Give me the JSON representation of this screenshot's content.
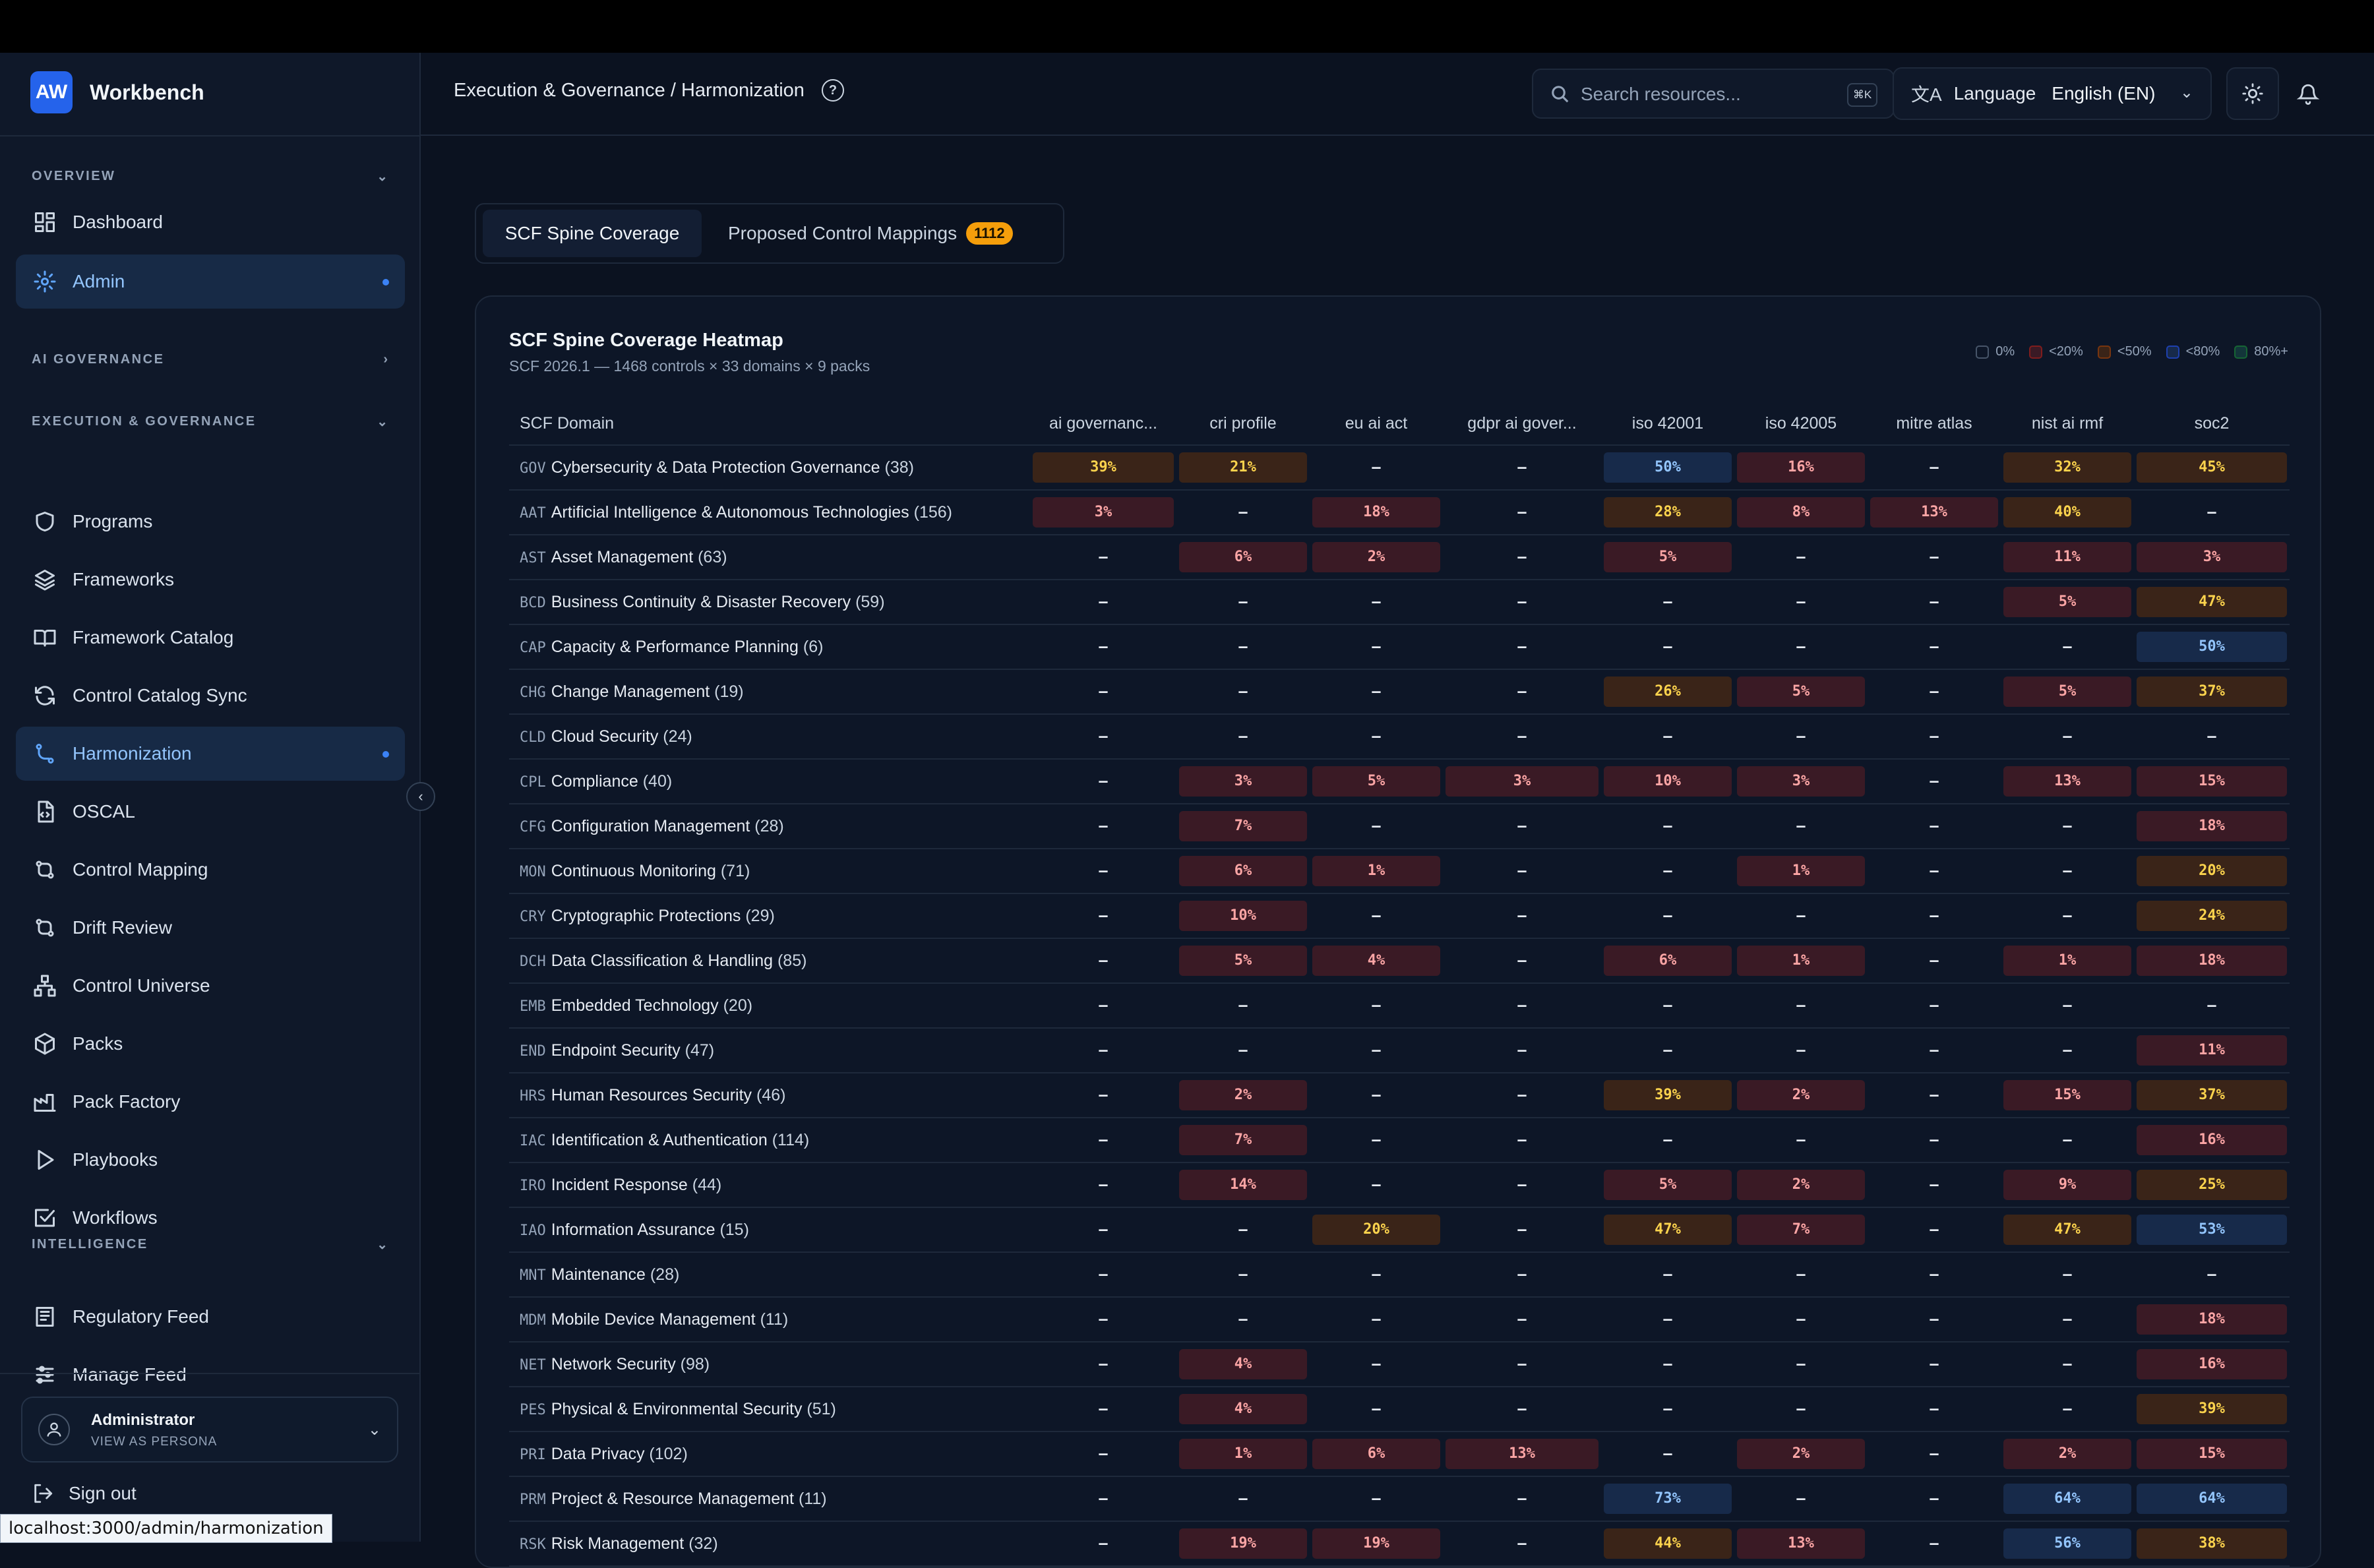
{
  "sidebar": {
    "brand_initials": "AW",
    "brand_name": "Workbench",
    "sections": {
      "overview": "OVERVIEW",
      "ai_governance": "AI GOVERNANCE",
      "execution": "EXECUTION & GOVERNANCE",
      "intelligence": "INTELLIGENCE"
    },
    "items": {
      "dashboard": "Dashboard",
      "admin": "Admin",
      "programs": "Programs",
      "frameworks": "Frameworks",
      "framework_catalog": "Framework Catalog",
      "control_catalog_sync": "Control Catalog Sync",
      "harmonization": "Harmonization",
      "oscal": "OSCAL",
      "control_mapping": "Control Mapping",
      "drift_review": "Drift Review",
      "control_universe": "Control Universe",
      "packs": "Packs",
      "pack_factory": "Pack Factory",
      "playbooks": "Playbooks",
      "workflows": "Workflows",
      "regulatory_feed": "Regulatory Feed",
      "manage_feed": "Manage Feed"
    },
    "persona": {
      "name": "Administrator",
      "subtitle": "VIEW AS PERSONA"
    },
    "sign_out": "Sign out"
  },
  "status_url": "localhost:3000/admin/harmonization",
  "header": {
    "breadcrumb": "Execution & Governance / Harmonization",
    "search_placeholder": "Search resources...",
    "search_shortcut": "⌘K",
    "language_label": "Language",
    "language_value": "English (EN)"
  },
  "tabs": {
    "coverage": "SCF Spine Coverage",
    "mappings": "Proposed Control Mappings",
    "mappings_count": "1112"
  },
  "card": {
    "title": "SCF Spine Coverage Heatmap",
    "subtitle": "SCF 2026.1 — 1468 controls × 33 domains × 9 packs",
    "legend": [
      "0%",
      "<20%",
      "<50%",
      "<80%",
      "80%+"
    ]
  },
  "colors": {
    "accent": "#3b82f6",
    "badge": "#f59e0b",
    "low": "#fca5a5",
    "mid": "#fcd34d",
    "high": "#93c5fd"
  },
  "table": {
    "domain_header": "SCF Domain",
    "columns": [
      "ai governanc...",
      "cri profile",
      "eu ai act",
      "gdpr ai gover...",
      "iso 42001",
      "iso 42005",
      "mitre atlas",
      "nist ai rmf",
      "soc2"
    ],
    "rows": [
      {
        "code": "GOV",
        "name": "Cybersecurity & Data Protection Governance",
        "count": "(38)",
        "cells": [
          "39%",
          "21%",
          "–",
          "–",
          "50%",
          "16%",
          "–",
          "32%",
          "45%"
        ]
      },
      {
        "code": "AAT",
        "name": "Artificial Intelligence & Autonomous Technologies",
        "count": "(156)",
        "cells": [
          "3%",
          "–",
          "18%",
          "–",
          "28%",
          "8%",
          "13%",
          "40%",
          "–"
        ]
      },
      {
        "code": "AST",
        "name": "Asset Management",
        "count": "(63)",
        "cells": [
          "–",
          "6%",
          "2%",
          "–",
          "5%",
          "–",
          "–",
          "11%",
          "3%"
        ]
      },
      {
        "code": "BCD",
        "name": "Business Continuity & Disaster Recovery",
        "count": "(59)",
        "cells": [
          "–",
          "–",
          "–",
          "–",
          "–",
          "–",
          "–",
          "5%",
          "47%"
        ]
      },
      {
        "code": "CAP",
        "name": "Capacity & Performance Planning",
        "count": "(6)",
        "cells": [
          "–",
          "–",
          "–",
          "–",
          "–",
          "–",
          "–",
          "–",
          "50%"
        ]
      },
      {
        "code": "CHG",
        "name": "Change Management",
        "count": "(19)",
        "cells": [
          "–",
          "–",
          "–",
          "–",
          "26%",
          "5%",
          "–",
          "5%",
          "37%"
        ]
      },
      {
        "code": "CLD",
        "name": "Cloud Security",
        "count": "(24)",
        "cells": [
          "–",
          "–",
          "–",
          "–",
          "–",
          "–",
          "–",
          "–",
          "–"
        ]
      },
      {
        "code": "CPL",
        "name": "Compliance",
        "count": "(40)",
        "cells": [
          "–",
          "3%",
          "5%",
          "3%",
          "10%",
          "3%",
          "–",
          "13%",
          "15%"
        ]
      },
      {
        "code": "CFG",
        "name": "Configuration Management",
        "count": "(28)",
        "cells": [
          "–",
          "7%",
          "–",
          "–",
          "–",
          "–",
          "–",
          "–",
          "18%"
        ]
      },
      {
        "code": "MON",
        "name": "Continuous Monitoring",
        "count": "(71)",
        "cells": [
          "–",
          "6%",
          "1%",
          "–",
          "–",
          "1%",
          "–",
          "–",
          "20%"
        ]
      },
      {
        "code": "CRY",
        "name": "Cryptographic Protections",
        "count": "(29)",
        "cells": [
          "–",
          "10%",
          "–",
          "–",
          "–",
          "–",
          "–",
          "–",
          "24%"
        ]
      },
      {
        "code": "DCH",
        "name": "Data Classification & Handling",
        "count": "(85)",
        "cells": [
          "–",
          "5%",
          "4%",
          "–",
          "6%",
          "1%",
          "–",
          "1%",
          "18%"
        ]
      },
      {
        "code": "EMB",
        "name": "Embedded Technology",
        "count": "(20)",
        "cells": [
          "–",
          "–",
          "–",
          "–",
          "–",
          "–",
          "–",
          "–",
          "–"
        ]
      },
      {
        "code": "END",
        "name": "Endpoint Security",
        "count": "(47)",
        "cells": [
          "–",
          "–",
          "–",
          "–",
          "–",
          "–",
          "–",
          "–",
          "11%"
        ]
      },
      {
        "code": "HRS",
        "name": "Human Resources Security",
        "count": "(46)",
        "cells": [
          "–",
          "2%",
          "–",
          "–",
          "39%",
          "2%",
          "–",
          "15%",
          "37%"
        ]
      },
      {
        "code": "IAC",
        "name": "Identification & Authentication",
        "count": "(114)",
        "cells": [
          "–",
          "7%",
          "–",
          "–",
          "–",
          "–",
          "–",
          "–",
          "16%"
        ]
      },
      {
        "code": "IRO",
        "name": "Incident Response",
        "count": "(44)",
        "cells": [
          "–",
          "14%",
          "–",
          "–",
          "5%",
          "2%",
          "–",
          "9%",
          "25%"
        ]
      },
      {
        "code": "IAO",
        "name": "Information Assurance",
        "count": "(15)",
        "cells": [
          "–",
          "–",
          "20%",
          "–",
          "47%",
          "7%",
          "–",
          "47%",
          "53%"
        ]
      },
      {
        "code": "MNT",
        "name": "Maintenance",
        "count": "(28)",
        "cells": [
          "–",
          "–",
          "–",
          "–",
          "–",
          "–",
          "–",
          "–",
          "–"
        ]
      },
      {
        "code": "MDM",
        "name": "Mobile Device Management",
        "count": "(11)",
        "cells": [
          "–",
          "–",
          "–",
          "–",
          "–",
          "–",
          "–",
          "–",
          "18%"
        ]
      },
      {
        "code": "NET",
        "name": "Network Security",
        "count": "(98)",
        "cells": [
          "–",
          "4%",
          "–",
          "–",
          "–",
          "–",
          "–",
          "–",
          "16%"
        ]
      },
      {
        "code": "PES",
        "name": "Physical & Environmental Security",
        "count": "(51)",
        "cells": [
          "–",
          "4%",
          "–",
          "–",
          "–",
          "–",
          "–",
          "–",
          "39%"
        ]
      },
      {
        "code": "PRI",
        "name": "Data Privacy",
        "count": "(102)",
        "cells": [
          "–",
          "1%",
          "6%",
          "13%",
          "–",
          "2%",
          "–",
          "2%",
          "15%"
        ]
      },
      {
        "code": "PRM",
        "name": "Project & Resource Management",
        "count": "(11)",
        "cells": [
          "–",
          "–",
          "–",
          "–",
          "73%",
          "–",
          "–",
          "64%",
          "64%"
        ]
      },
      {
        "code": "RSK",
        "name": "Risk Management",
        "count": "(32)",
        "cells": [
          "–",
          "19%",
          "19%",
          "–",
          "44%",
          "13%",
          "–",
          "56%",
          "38%"
        ]
      }
    ]
  }
}
